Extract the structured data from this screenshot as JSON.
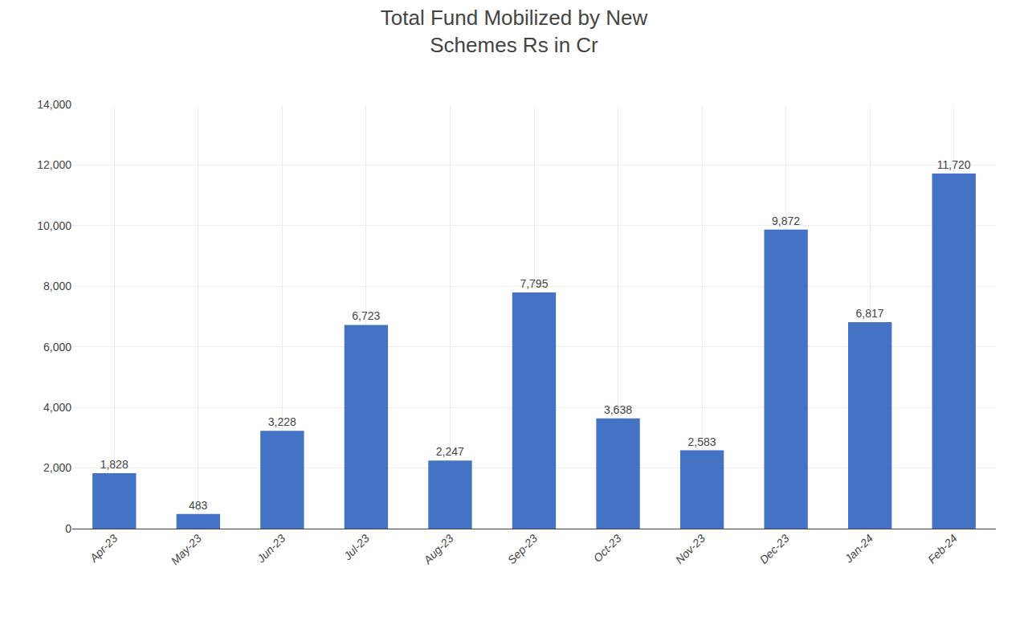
{
  "chart_data": {
    "type": "bar",
    "title": "Total Fund Mobilized by New\nSchemes Rs in Cr",
    "categories": [
      "Apr-23",
      "May-23",
      "Jun-23",
      "Jul-23",
      "Aug-23",
      "Sep-23",
      "Oct-23",
      "Nov-23",
      "Dec-23",
      "Jan-24",
      "Feb-24"
    ],
    "values": [
      1828,
      483,
      3228,
      6723,
      2247,
      7795,
      3638,
      2583,
      9872,
      6817,
      11720
    ],
    "value_labels": [
      "1,828",
      "483",
      "3,228",
      "6,723",
      "2,247",
      "7,795",
      "3,638",
      "2,583",
      "9,872",
      "6,817",
      "11,720"
    ],
    "data_labels": true,
    "color": "#4472C4",
    "ylim": [
      0,
      14000
    ],
    "yticks": [
      0,
      {
        "value": 2000,
        "label": "2,000"
      },
      {
        "value": 4000,
        "label": "4,000"
      },
      {
        "value": 6000,
        "label": "6,000"
      },
      {
        "value": 8000,
        "label": "8,000"
      },
      {
        "value": 10000,
        "label": "10,000"
      },
      {
        "value": 12000,
        "label": "12,000"
      },
      {
        "value": 14000,
        "label": "14,000"
      }
    ],
    "grid": true
  }
}
